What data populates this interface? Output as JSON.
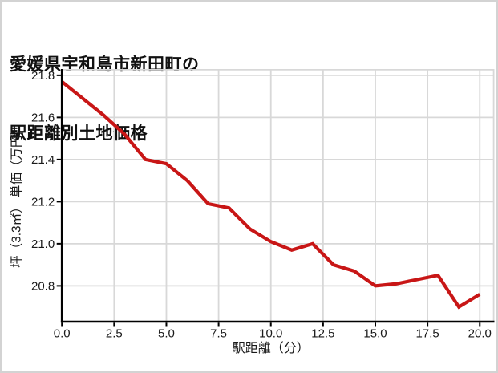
{
  "title": {
    "line1": "愛媛県宇和島市新田町の",
    "line2": "駅距離別土地価格"
  },
  "chart_data": {
    "type": "line",
    "title": "愛媛県宇和島市新田町の駅距離別土地価格",
    "xlabel": "駅距離（分）",
    "ylabel": "坪（3.3㎡） 単価（万円）",
    "x": [
      0,
      1,
      2,
      3,
      4,
      5,
      6,
      7,
      8,
      9,
      10,
      11,
      12,
      13,
      14,
      15,
      16,
      17,
      18,
      19,
      20
    ],
    "values": [
      21.77,
      21.69,
      21.61,
      21.52,
      21.4,
      21.38,
      21.3,
      21.19,
      21.17,
      21.07,
      21.01,
      20.97,
      21.0,
      20.9,
      20.87,
      20.8,
      20.81,
      20.83,
      20.85,
      20.7,
      20.76
    ],
    "series_name": "駅距離別土地価格",
    "xlim": [
      0,
      20.7
    ],
    "ylim": [
      20.63,
      21.83
    ],
    "xticks": [
      0,
      2.5,
      5,
      7.5,
      10,
      12.5,
      15,
      17.5,
      20
    ],
    "xtick_labels": [
      "0.0",
      "2.5",
      "5.0",
      "7.5",
      "10.0",
      "12.5",
      "15.0",
      "17.5",
      "20.0"
    ],
    "yticks": [
      20.8,
      21.0,
      21.2,
      21.4,
      21.6,
      21.8
    ],
    "ytick_labels": [
      "20.8",
      "21.0",
      "21.2",
      "21.4",
      "21.6",
      "21.8"
    ],
    "grid": true,
    "legend": false,
    "line_color": "#c81616",
    "grid_color": "#d8d8d8",
    "axis_color": "#000000",
    "text_color": "#1a1a1a",
    "background": "#ffffff"
  }
}
